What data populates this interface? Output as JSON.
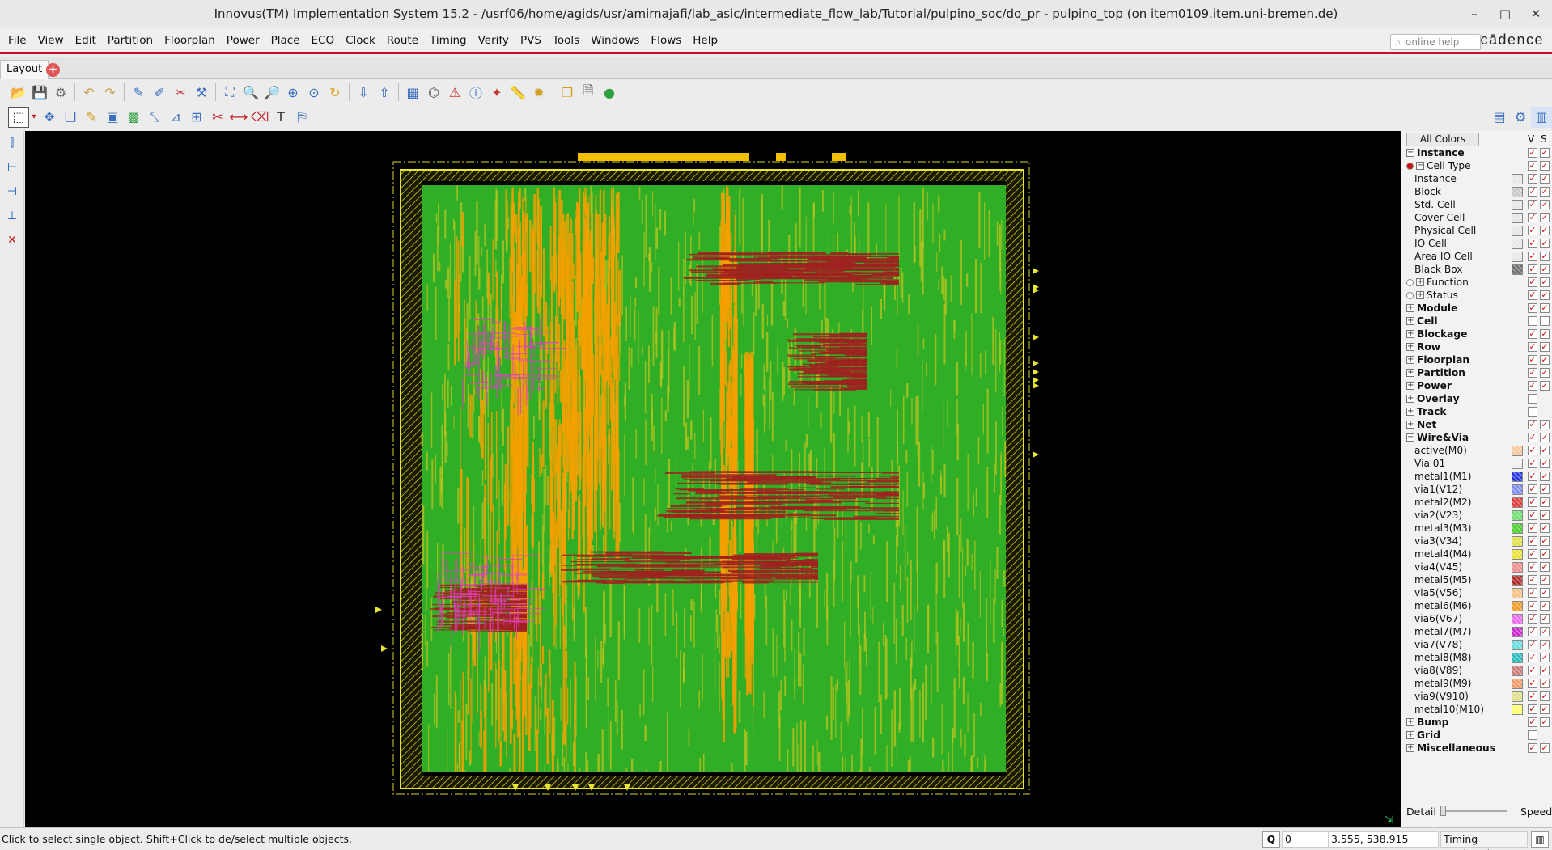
{
  "window": {
    "title": "Innovus(TM) Implementation System 15.2 - /usrf06/home/agids/usr/amirnajafi/lab_asic/intermediate_flow_lab/Tutorial/pulpino_soc/do_pr - pulpino_top (on item0109.item.uni-bremen.de)",
    "minimize": "–",
    "maximize": "□",
    "close": "✕"
  },
  "menu": [
    "File",
    "View",
    "Edit",
    "Partition",
    "Floorplan",
    "Power",
    "Place",
    "ECO",
    "Clock",
    "Route",
    "Timing",
    "Verify",
    "PVS",
    "Tools",
    "Windows",
    "Flows",
    "Help"
  ],
  "help_search": {
    "placeholder": "online help"
  },
  "brand": "cādence",
  "tabs": {
    "active": "Layout",
    "add": "+"
  },
  "toolbar1": [
    "open-icon",
    "save-icon",
    "settings-icon",
    "undo-icon",
    "redo-icon",
    "edit-wire-icon",
    "edit-route-icon",
    "wire-add-icon",
    "wire-tools-icon",
    "zoom-fit-icon",
    "zoom-in-icon",
    "zoom-out-icon",
    "zoom-area-icon",
    "zoom-select-icon",
    "refresh-icon",
    "push-icon",
    "pop-icon",
    "floorplan-view-icon",
    "hierarchy-icon",
    "violation-icon",
    "info-icon",
    "design-browser-icon",
    "ruler-icon",
    "highlight-icon",
    "copy-screen-icon",
    "notes-icon",
    "globe-icon"
  ],
  "toolbar2": [
    "select-icon",
    "move-icon",
    "copy-icon",
    "wire-edit-icon",
    "place-icon",
    "module-icon",
    "stretch-icon",
    "shape-icon",
    "align-icon",
    "cut-icon",
    "resize-icon",
    "delete-icon",
    "add-text-icon",
    "bookmark-icon"
  ],
  "lefttools": [
    "vruler-icon",
    "ruler-h-icon",
    "ruler-h2-icon",
    "ruler-v2-icon",
    "clear-rulers-icon"
  ],
  "layers_panel": {
    "all_colors": "All Colors",
    "col_v": "V",
    "col_s": "S",
    "detail_label": "Detail",
    "speed_label": "Speed",
    "detail_level": 0.0,
    "rows": [
      {
        "label": "Instance",
        "indent": 0,
        "expander": "-",
        "bold": true,
        "v": true,
        "s": true
      },
      {
        "label": "Cell Type",
        "indent": 1,
        "expander": "-",
        "radio": "on",
        "v": true,
        "s": true
      },
      {
        "label": "Instance",
        "indent": 2,
        "swatch": "#e6e6e6",
        "v": true,
        "s": true
      },
      {
        "label": "Block",
        "indent": 2,
        "swatch": "#c8c8c8",
        "v": true,
        "s": true
      },
      {
        "label": "Std. Cell",
        "indent": 2,
        "swatch": "#e6e6e6",
        "v": true,
        "s": true
      },
      {
        "label": "Cover Cell",
        "indent": 2,
        "swatch": "#e6e6e6",
        "v": true,
        "s": true
      },
      {
        "label": "Physical Cell",
        "indent": 2,
        "swatch": "#e6e6e6",
        "v": true,
        "s": true
      },
      {
        "label": "IO Cell",
        "indent": 2,
        "swatch": "#e6e6e6",
        "v": true,
        "s": true
      },
      {
        "label": "Area IO Cell",
        "indent": 2,
        "swatch": "#e6e6e6",
        "v": true,
        "s": true
      },
      {
        "label": "Black Box",
        "indent": 2,
        "swatch": "#6a6a6a",
        "v": true,
        "s": true
      },
      {
        "label": "Function",
        "indent": 1,
        "expander": "+",
        "radio": "off",
        "v": true,
        "s": true
      },
      {
        "label": "Status",
        "indent": 1,
        "expander": "+",
        "radio": "off",
        "v": true,
        "s": true
      },
      {
        "label": "Module",
        "indent": 0,
        "expander": "+",
        "bold": true,
        "v": true,
        "s": true
      },
      {
        "label": "Cell",
        "indent": 0,
        "expander": "+",
        "bold": true,
        "v": false,
        "s": false
      },
      {
        "label": "Blockage",
        "indent": 0,
        "expander": "+",
        "bold": true,
        "v": true,
        "s": true
      },
      {
        "label": "Row",
        "indent": 0,
        "expander": "+",
        "bold": true,
        "v": true,
        "s": true
      },
      {
        "label": "Floorplan",
        "indent": 0,
        "expander": "+",
        "bold": true,
        "v": true,
        "s": true
      },
      {
        "label": "Partition",
        "indent": 0,
        "expander": "+",
        "bold": true,
        "v": true,
        "s": true
      },
      {
        "label": "Power",
        "indent": 0,
        "expander": "+",
        "bold": true,
        "v": true,
        "s": true
      },
      {
        "label": "Overlay",
        "indent": 0,
        "expander": "+",
        "bold": true,
        "v": false,
        "s": null
      },
      {
        "label": "Track",
        "indent": 0,
        "expander": "+",
        "bold": true,
        "v": false,
        "s": null
      },
      {
        "label": "Net",
        "indent": 0,
        "expander": "+",
        "bold": true,
        "v": true,
        "s": true
      },
      {
        "label": "Wire&Via",
        "indent": 0,
        "expander": "-",
        "bold": true,
        "v": true,
        "s": true
      },
      {
        "label": "active(M0)",
        "indent": 2,
        "swatch": "#f6c79a",
        "v": true,
        "s": true
      },
      {
        "label": "Via 01",
        "indent": 2,
        "swatch": "#f0f0f0",
        "v": true,
        "s": true
      },
      {
        "label": "metal1(M1)",
        "indent": 2,
        "swatch": "#2233dd",
        "v": true,
        "s": true
      },
      {
        "label": "via1(V12)",
        "indent": 2,
        "swatch": "#7a88ee",
        "v": true,
        "s": true
      },
      {
        "label": "metal2(M2)",
        "indent": 2,
        "swatch": "#dd3333",
        "v": true,
        "s": true
      },
      {
        "label": "via2(V23)",
        "indent": 2,
        "swatch": "#66dd66",
        "v": true,
        "s": true
      },
      {
        "label": "metal3(M3)",
        "indent": 2,
        "swatch": "#44cc22",
        "v": true,
        "s": true
      },
      {
        "label": "via3(V34)",
        "indent": 2,
        "swatch": "#dddd44",
        "v": true,
        "s": true
      },
      {
        "label": "metal4(M4)",
        "indent": 2,
        "swatch": "#e8e030",
        "v": true,
        "s": true
      },
      {
        "label": "via4(V45)",
        "indent": 2,
        "swatch": "#ee8888",
        "v": true,
        "s": true
      },
      {
        "label": "metal5(M5)",
        "indent": 2,
        "swatch": "#aa2222",
        "v": true,
        "s": true
      },
      {
        "label": "via5(V56)",
        "indent": 2,
        "swatch": "#f7c080",
        "v": true,
        "s": true
      },
      {
        "label": "metal6(M6)",
        "indent": 2,
        "swatch": "#f09820",
        "v": true,
        "s": true
      },
      {
        "label": "via6(V67)",
        "indent": 2,
        "swatch": "#ee66ee",
        "v": true,
        "s": true
      },
      {
        "label": "metal7(M7)",
        "indent": 2,
        "swatch": "#cc22cc",
        "v": true,
        "s": true
      },
      {
        "label": "via7(V78)",
        "indent": 2,
        "swatch": "#66dddd",
        "v": true,
        "s": true
      },
      {
        "label": "metal8(M8)",
        "indent": 2,
        "swatch": "#22bbbb",
        "v": true,
        "s": true
      },
      {
        "label": "via8(V89)",
        "indent": 2,
        "swatch": "#cc7777",
        "v": true,
        "s": true
      },
      {
        "label": "metal9(M9)",
        "indent": 2,
        "swatch": "#ee9966",
        "v": true,
        "s": true
      },
      {
        "label": "via9(V910)",
        "indent": 2,
        "swatch": "#dddd88",
        "v": true,
        "s": true
      },
      {
        "label": "metal10(M10)",
        "indent": 2,
        "swatch": "#ffff66",
        "v": true,
        "s": true
      },
      {
        "label": "Bump",
        "indent": 0,
        "expander": "+",
        "bold": true,
        "v": true,
        "s": true
      },
      {
        "label": "Grid",
        "indent": 0,
        "expander": "+",
        "bold": true,
        "v": false,
        "s": null
      },
      {
        "label": "Miscellaneous",
        "indent": 0,
        "expander": "+",
        "bold": true,
        "v": true,
        "s": true
      }
    ]
  },
  "statusbar": {
    "message": "Click to select single object. Shift+Click to de/select multiple objects.",
    "q_label": "Q",
    "q_value": "0",
    "coords": "3.555, 538.915",
    "timing": "Timing Analyzed"
  },
  "colors": {
    "menu_accent": "#c8102e",
    "canvas_bg": "#000000",
    "core_green": "#2fae26",
    "core_yellow": "#c8c41e",
    "route_orange": "#f5a000",
    "route_red": "#a02020",
    "route_magenta": "#e040c0",
    "io_yellow": "#e6e630"
  }
}
